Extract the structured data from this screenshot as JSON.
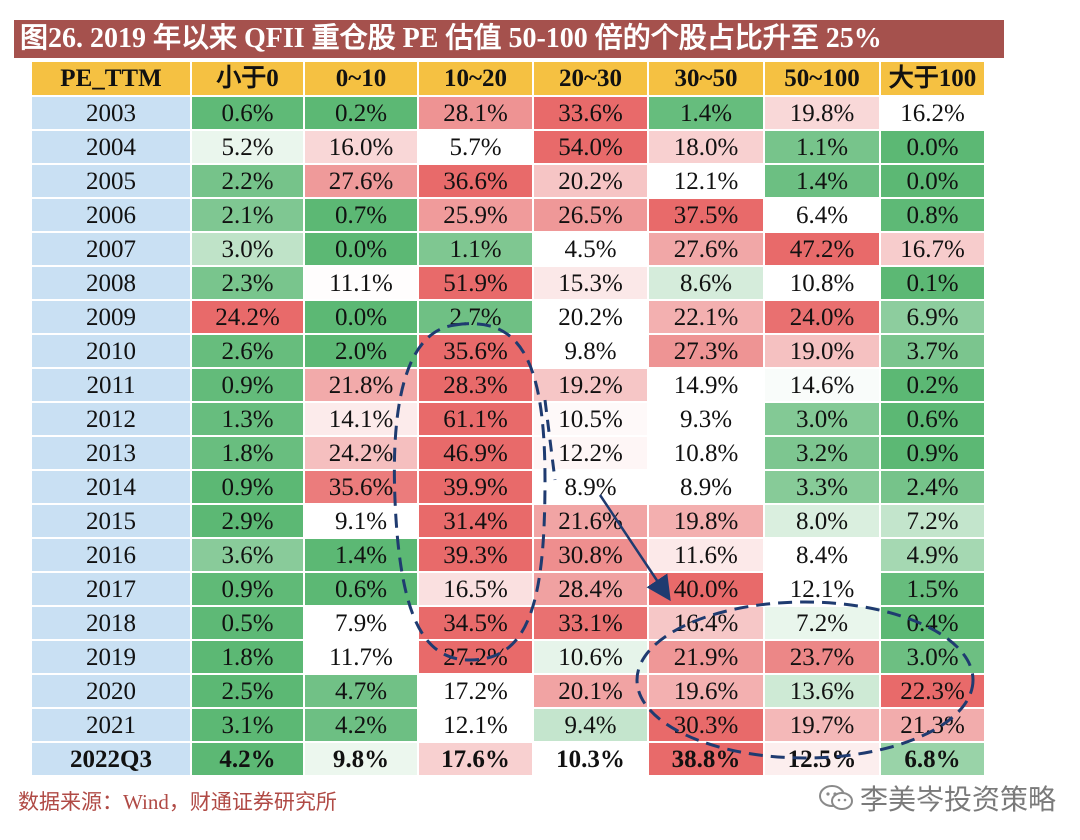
{
  "title": "图26. 2019 年以来 QFII 重仓股 PE 估值 50-100 倍的个股占比升至 25%",
  "source": "数据来源：Wind，财通证券研究所",
  "watermark": "李美岑投资策略",
  "colors": {
    "title_bg": "#a5514d",
    "header_bg": "#f5c142",
    "year_bg": "#c9e0f3",
    "high": "#e86a6a",
    "low": "#5cb874",
    "mid": "#ffffff",
    "annotation": "#1f3b70"
  },
  "chart_data": {
    "type": "table",
    "title": "图26. 2019 年以来 QFII 重仓股 PE 估值 50-100 倍的个股占比升至 25%",
    "row_header": "PE_TTM",
    "columns": [
      "小于0",
      "0~10",
      "10~20",
      "20~30",
      "30~50",
      "50~100",
      "大于100"
    ],
    "rows": [
      {
        "label": "2003",
        "values": [
          0.6,
          0.2,
          28.1,
          33.6,
          1.4,
          19.8,
          16.2
        ]
      },
      {
        "label": "2004",
        "values": [
          5.2,
          16.0,
          5.7,
          54.0,
          18.0,
          1.1,
          0.0
        ]
      },
      {
        "label": "2005",
        "values": [
          2.2,
          27.6,
          36.6,
          20.2,
          12.1,
          1.4,
          0.0
        ]
      },
      {
        "label": "2006",
        "values": [
          2.1,
          0.7,
          25.9,
          26.5,
          37.5,
          6.4,
          0.8
        ]
      },
      {
        "label": "2007",
        "values": [
          3.0,
          0.0,
          1.1,
          4.5,
          27.6,
          47.2,
          16.7
        ]
      },
      {
        "label": "2008",
        "values": [
          2.3,
          11.1,
          51.9,
          15.3,
          8.6,
          10.8,
          0.1
        ]
      },
      {
        "label": "2009",
        "values": [
          24.2,
          0.0,
          2.7,
          20.2,
          22.1,
          24.0,
          6.9
        ]
      },
      {
        "label": "2010",
        "values": [
          2.6,
          2.0,
          35.6,
          9.8,
          27.3,
          19.0,
          3.7
        ]
      },
      {
        "label": "2011",
        "values": [
          0.9,
          21.8,
          28.3,
          19.2,
          14.9,
          14.6,
          0.2
        ]
      },
      {
        "label": "2012",
        "values": [
          1.3,
          14.1,
          61.1,
          10.5,
          9.3,
          3.0,
          0.6
        ]
      },
      {
        "label": "2013",
        "values": [
          1.8,
          24.2,
          46.9,
          12.2,
          10.8,
          3.2,
          0.9
        ]
      },
      {
        "label": "2014",
        "values": [
          0.9,
          35.6,
          39.9,
          8.9,
          8.9,
          3.3,
          2.4
        ]
      },
      {
        "label": "2015",
        "values": [
          2.9,
          9.1,
          31.4,
          21.6,
          19.8,
          8.0,
          7.2
        ]
      },
      {
        "label": "2016",
        "values": [
          3.6,
          1.4,
          39.3,
          30.8,
          11.6,
          8.4,
          4.9
        ]
      },
      {
        "label": "2017",
        "values": [
          0.9,
          0.6,
          16.5,
          28.4,
          40.0,
          12.1,
          1.5
        ]
      },
      {
        "label": "2018",
        "values": [
          0.5,
          7.9,
          34.5,
          33.1,
          16.4,
          7.2,
          0.4
        ]
      },
      {
        "label": "2019",
        "values": [
          1.8,
          11.7,
          27.2,
          10.6,
          21.9,
          23.7,
          3.0
        ]
      },
      {
        "label": "2020",
        "values": [
          2.5,
          4.7,
          17.2,
          20.1,
          19.6,
          13.6,
          22.3
        ]
      },
      {
        "label": "2021",
        "values": [
          3.1,
          4.2,
          12.1,
          9.4,
          30.3,
          19.7,
          21.3
        ]
      },
      {
        "label": "2022Q3",
        "values": [
          4.2,
          9.8,
          17.6,
          10.3,
          38.8,
          12.5,
          6.8
        ]
      }
    ],
    "unit": "%"
  }
}
